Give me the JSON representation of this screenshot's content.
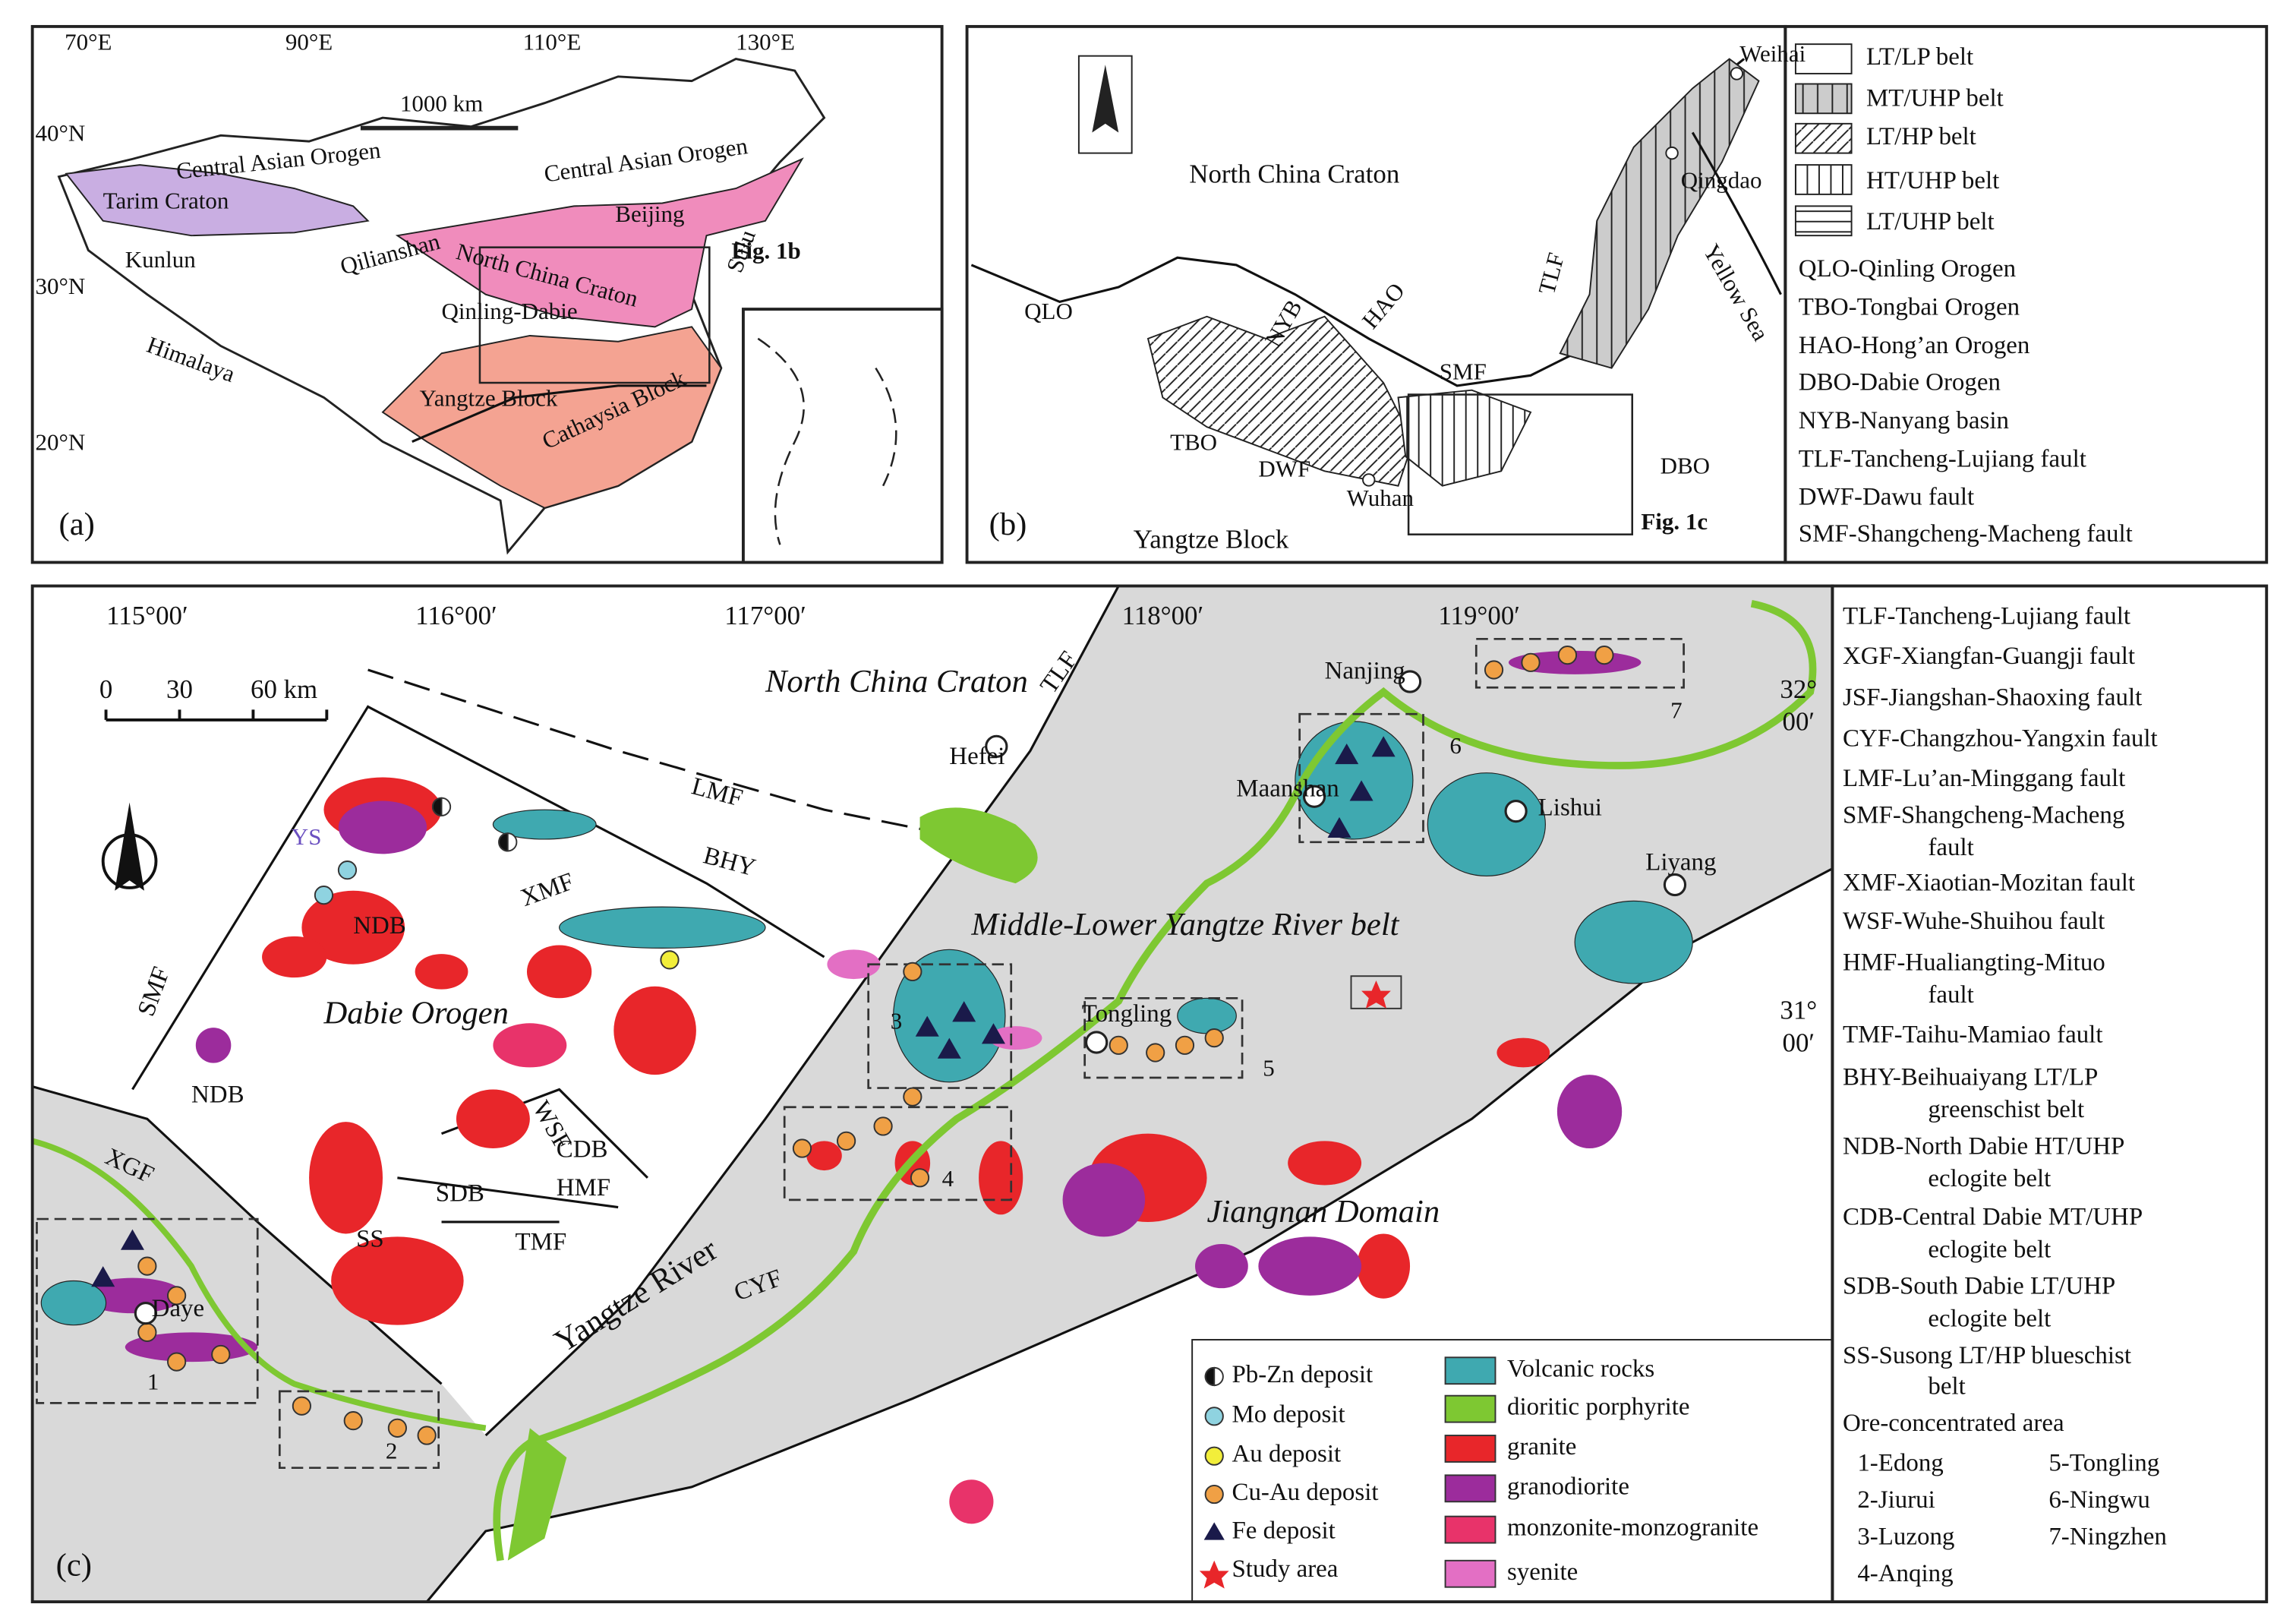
{
  "panel_a": {
    "label": "(a)",
    "lon_labels": [
      "70°E",
      "90°E",
      "110°E",
      "130°E"
    ],
    "lat_labels": [
      "40°N",
      "30°N",
      "20°N"
    ],
    "scale_bar": "1000 km",
    "places": [
      "Central Asian Orogen",
      "Central Asian Orogen",
      "Tarim Craton",
      "Beijing",
      "North China Craton",
      "Kunlun",
      "Qilianshan",
      "Sulu",
      "Himalaya",
      "Qinling-Dabie",
      "Yangtze Block",
      "Cathaysia Block"
    ],
    "figure_ref": "Fig. 1b"
  },
  "panel_b": {
    "label": "(b)",
    "places": [
      "North China Craton",
      "QLO",
      "NYB",
      "HAO",
      "SMF",
      "TLF",
      "TBO",
      "DWF",
      "Wuhan",
      "DBO",
      "Yangtze Block",
      "Weihai",
      "Qingdao",
      "Yellow Sea"
    ],
    "figure_ref": "Fig. 1c",
    "legend_belts": [
      "LT/LP belt",
      "MT/UHP belt",
      "LT/HP belt",
      "HT/UHP belt",
      "LT/UHP belt"
    ],
    "abbreviations": [
      "QLO-Qinling Orogen",
      "TBO-Tongbai Orogen",
      "HAO-Hong’an Orogen",
      "DBO-Dabie Orogen",
      "NYB-Nanyang basin",
      "TLF-Tancheng-Lujiang fault",
      "DWF-Dawu fault",
      "SMF-Shangcheng-Macheng fault"
    ]
  },
  "panel_c": {
    "label": "(c)",
    "lon_labels": [
      "115°00′",
      "116°00′",
      "117°00′",
      "118°00′",
      "119°00′"
    ],
    "lat_labels": [
      [
        "32°",
        "00′"
      ],
      [
        "31°",
        "00′"
      ]
    ],
    "scale_bar": [
      "0",
      "30",
      "60 km"
    ],
    "places": [
      "North China Craton",
      "LMF",
      "TLF",
      "Hefei",
      "Nanjing",
      "Maanshan",
      "Lishui",
      "Liyang",
      "BHY",
      "YS",
      "XMF",
      "NDB",
      "NDB",
      "SMF",
      "Dabie Orogen",
      "Middle-Lower Yangtze River belt",
      "Tongling",
      "WSF",
      "CDB",
      "HMF",
      "SDB",
      "TMF",
      "SS",
      "XGF",
      "Daye",
      "Jiangnan Domain",
      "Yangtze River",
      "CYF"
    ],
    "area_numbers": [
      "1",
      "2",
      "3",
      "4",
      "5",
      "6",
      "7"
    ],
    "deposit_legend": [
      "Pb-Zn deposit",
      "Mo deposit",
      "Au deposit",
      "Cu-Au deposit",
      "Fe deposit",
      "Study area"
    ],
    "rock_legend": [
      "Volcanic rocks",
      "dioritic porphyrite",
      "granite",
      "granodiorite",
      "monzonite-monzogranite",
      "syenite"
    ],
    "abbreviation_list": [
      "TLF-Tancheng-Lujiang fault",
      "XGF-Xiangfan-Guangji fault",
      "JSF-Jiangshan-Shaoxing fault",
      "CYF-Changzhou-Yangxin fault",
      "LMF-Lu’an-Minggang fault",
      "SMF-Shangcheng-Macheng",
      "fault",
      "XMF-Xiaotian-Mozitan fault",
      "WSF-Wuhe-Shuihou fault",
      "HMF-Hualiangting-Mituo",
      "fault",
      "TMF-Taihu-Mamiao fault",
      "BHY-Beihuaiyang LT/LP",
      "greenschist belt",
      "NDB-North Dabie HT/UHP",
      "eclogite belt",
      "CDB-Central Dabie MT/UHP",
      "eclogite belt",
      "SDB-South Dabie LT/UHP",
      "eclogite belt",
      "SS-Susong LT/HP blueschist",
      "belt"
    ],
    "ore_areas_title": "Ore-concentrated area",
    "ore_areas": [
      "1-Edong",
      "2-Jiurui",
      "3-Luzong",
      "4-Anqing",
      "5-Tongling",
      "6-Ningwu",
      "7-Ningzhen"
    ]
  }
}
